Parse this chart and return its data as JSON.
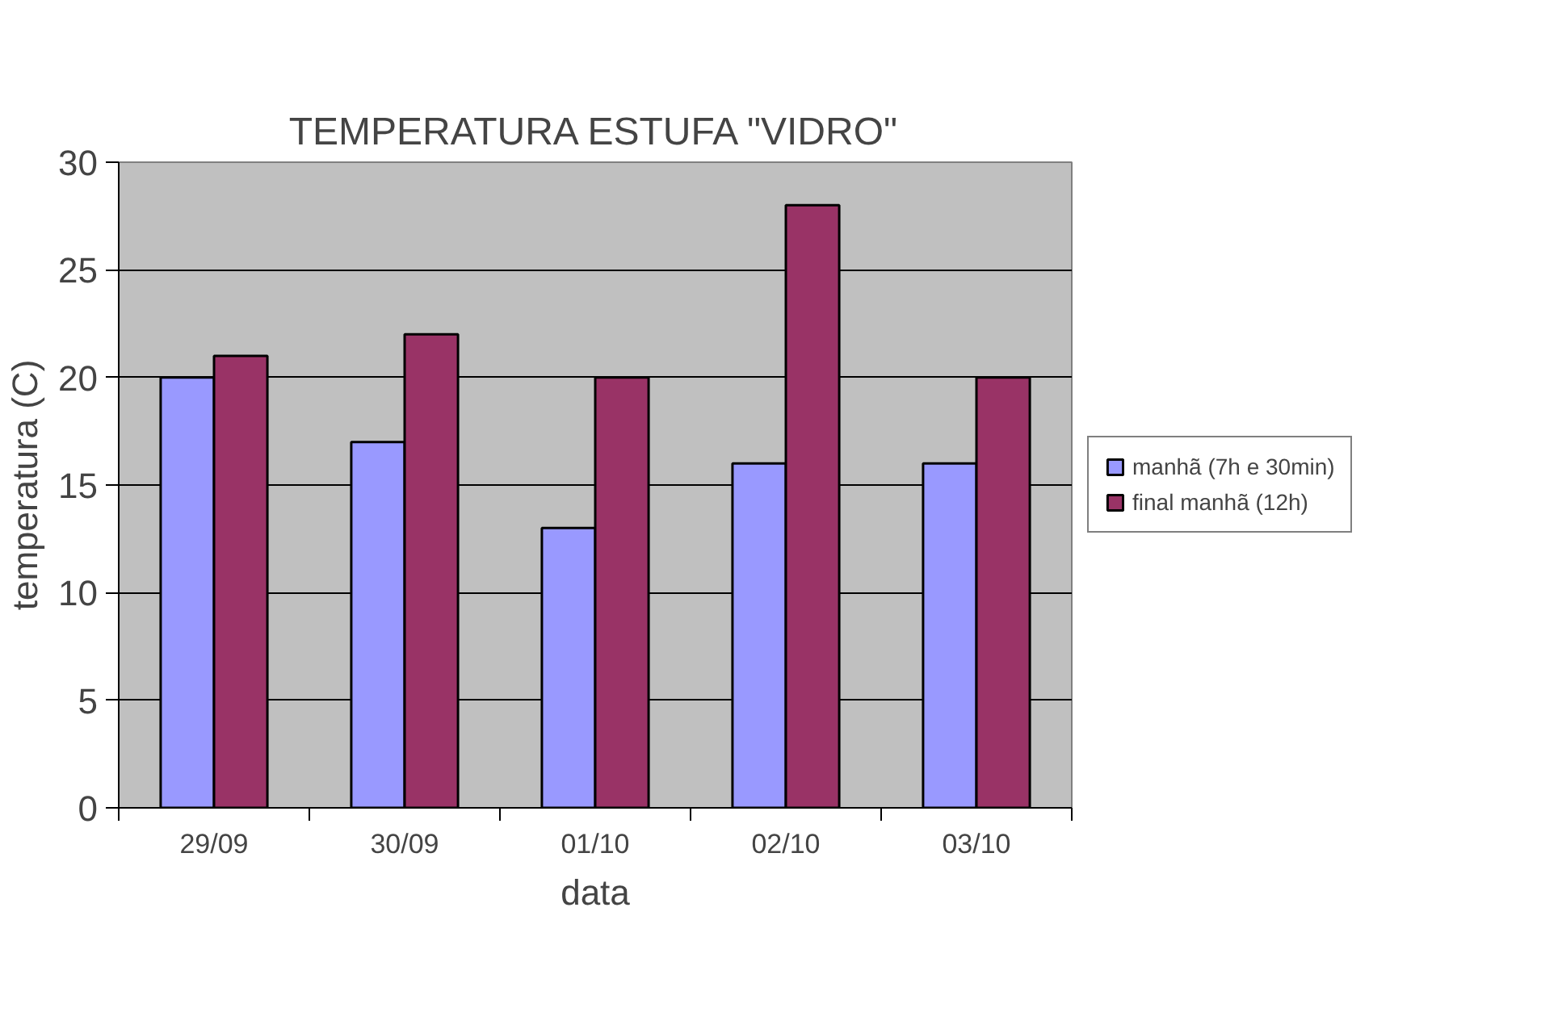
{
  "chart_data": {
    "type": "bar",
    "title": "TEMPERATURA ESTUFA \"VIDRO\"",
    "xlabel": "data",
    "ylabel": "temperatura (C)",
    "categories": [
      "29/09",
      "30/09",
      "01/10",
      "02/10",
      "03/10"
    ],
    "series": [
      {
        "name": "manhã (7h e 30min)",
        "color": "#9999ff",
        "values": [
          20,
          17,
          13,
          16,
          16
        ]
      },
      {
        "name": "final manhã (12h)",
        "color": "#993366",
        "values": [
          21,
          22,
          20,
          28,
          20
        ]
      }
    ],
    "ylim": [
      0,
      30
    ],
    "yticks": [
      0,
      5,
      10,
      15,
      20,
      25,
      30
    ],
    "grid": "y",
    "legend": "right"
  }
}
